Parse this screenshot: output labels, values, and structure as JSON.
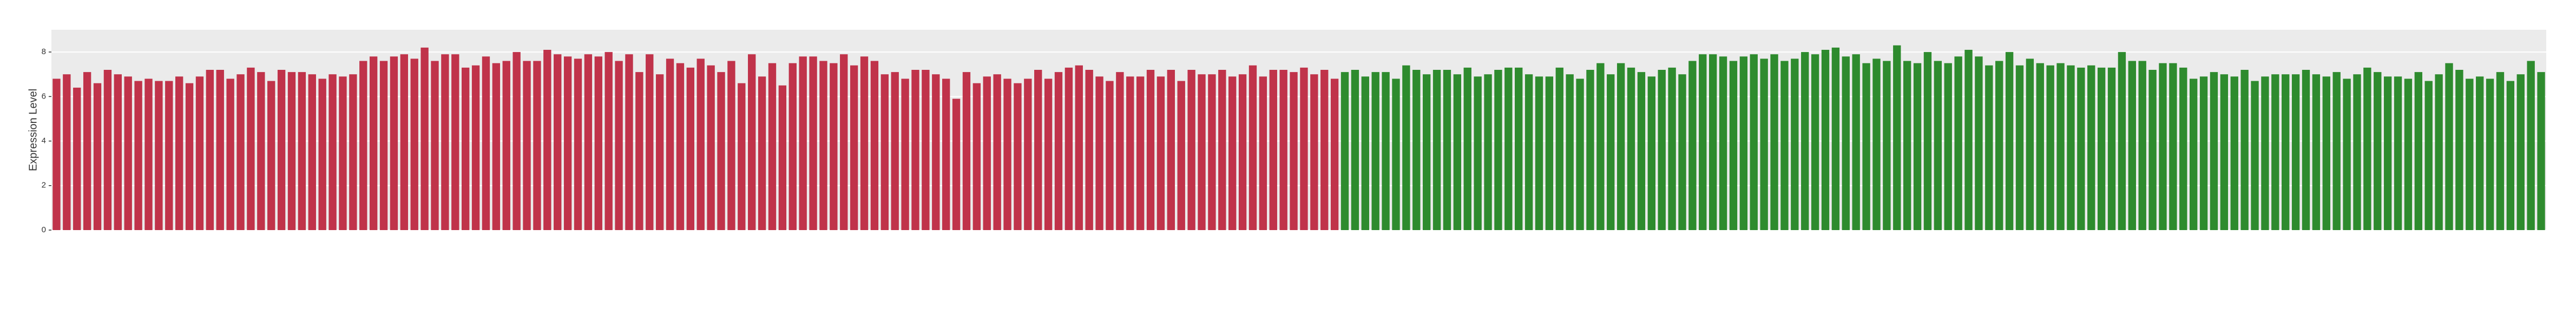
{
  "chart_data": {
    "type": "bar",
    "ylabel": "Expression Level",
    "ylim": [
      0,
      9
    ],
    "yticks": [
      0,
      2,
      4,
      6,
      8
    ],
    "grid": true,
    "series": [
      {
        "color": "#c0334a",
        "values": [
          6.8,
          7.0,
          6.4,
          7.1,
          6.6,
          7.2,
          7.0,
          6.9,
          6.7,
          6.8,
          6.7,
          6.7,
          6.9,
          6.6,
          6.9,
          7.2,
          7.2,
          6.8,
          7.0,
          7.3,
          7.1,
          6.7,
          7.2,
          7.1,
          7.1,
          7.0,
          6.8,
          7.0,
          6.9,
          7.0,
          7.6,
          7.8,
          7.6,
          7.8,
          7.9,
          7.7,
          8.2,
          7.6,
          7.9,
          7.9,
          7.3,
          7.4,
          7.8,
          7.5,
          7.6,
          8.0,
          7.6,
          7.6,
          8.1,
          7.9,
          7.8,
          7.7,
          7.9,
          7.8,
          8.0,
          7.6,
          7.9,
          7.1,
          7.9,
          7.0,
          7.7,
          7.5,
          7.3,
          7.7,
          7.4,
          7.1,
          7.6,
          6.6,
          7.9,
          6.9,
          7.5,
          6.5,
          7.5,
          7.8,
          7.8,
          7.6,
          7.5,
          7.9,
          7.4,
          7.8,
          7.6,
          7.0,
          7.1,
          6.8,
          7.2,
          7.2,
          7.0,
          6.8,
          5.9,
          7.1,
          6.6,
          6.9,
          7.0,
          6.8,
          6.6,
          6.8,
          7.2,
          6.8,
          7.1,
          7.3,
          7.4,
          7.2,
          6.9,
          6.7,
          7.1,
          6.9,
          6.9,
          7.2,
          6.9,
          7.2,
          6.7,
          7.2,
          7.0,
          7.0,
          7.2,
          6.9,
          7.0,
          7.4,
          6.9,
          7.2,
          7.2,
          7.1,
          7.3,
          7.0,
          7.2,
          6.8,
          null,
          null,
          null,
          null,
          null,
          null,
          null,
          null,
          null,
          null,
          null,
          null,
          null,
          null,
          null,
          null,
          null,
          null,
          null,
          null,
          null,
          null,
          null,
          null,
          null,
          null,
          null,
          null,
          null,
          null,
          null,
          null,
          null,
          null,
          null,
          null,
          null,
          null,
          null,
          null,
          null,
          null,
          null,
          null,
          null,
          null,
          null,
          null,
          null,
          null,
          null,
          null,
          null,
          null,
          null,
          null,
          null,
          null,
          null,
          null,
          null,
          null,
          null,
          null,
          null,
          null,
          null,
          null,
          null,
          null,
          null,
          null,
          null,
          null,
          null,
          null,
          null,
          null,
          null,
          null,
          null,
          null,
          null,
          null,
          null,
          null,
          null,
          null,
          null,
          null,
          null,
          null,
          null,
          null,
          null,
          null,
          null,
          null,
          null,
          null,
          null,
          null,
          null,
          null,
          null,
          null,
          null,
          null,
          null,
          null,
          null,
          null,
          null,
          null,
          null,
          null,
          null,
          null
        ]
      },
      {
        "color": "#2e8b2e",
        "values": [
          null,
          null,
          null,
          null,
          null,
          null,
          null,
          null,
          null,
          null,
          null,
          null,
          null,
          null,
          null,
          null,
          null,
          null,
          null,
          null,
          null,
          null,
          null,
          null,
          null,
          null,
          null,
          null,
          null,
          null,
          null,
          null,
          null,
          null,
          null,
          null,
          null,
          null,
          null,
          null,
          null,
          null,
          null,
          null,
          null,
          null,
          null,
          null,
          null,
          null,
          null,
          null,
          null,
          null,
          null,
          null,
          null,
          null,
          null,
          null,
          null,
          null,
          null,
          null,
          null,
          null,
          null,
          null,
          null,
          null,
          null,
          null,
          null,
          null,
          null,
          null,
          null,
          null,
          null,
          null,
          null,
          null,
          null,
          null,
          null,
          null,
          null,
          null,
          null,
          null,
          null,
          null,
          null,
          null,
          null,
          null,
          null,
          null,
          null,
          null,
          null,
          null,
          null,
          null,
          null,
          null,
          null,
          null,
          null,
          null,
          null,
          null,
          null,
          null,
          null,
          null,
          null,
          null,
          null,
          null,
          null,
          null,
          null,
          null,
          null,
          null,
          7.1,
          7.2,
          6.9,
          7.1,
          7.1,
          6.8,
          7.4,
          7.2,
          7.0,
          7.2,
          7.2,
          7.0,
          7.3,
          6.9,
          7.0,
          7.2,
          7.3,
          7.3,
          7.0,
          6.9,
          6.9,
          7.3,
          7.0,
          6.8,
          7.2,
          7.5,
          7.0,
          7.5,
          7.3,
          7.1,
          6.9,
          7.2,
          7.3,
          7.0,
          7.6,
          7.9,
          7.9,
          7.8,
          7.6,
          7.8,
          7.9,
          7.7,
          7.9,
          7.6,
          7.7,
          8.0,
          7.9,
          8.1,
          8.2,
          7.8,
          7.9,
          7.5,
          7.7,
          7.6,
          8.3,
          7.6,
          7.5,
          8.0,
          7.6,
          7.5,
          7.8,
          8.1,
          7.8,
          7.4,
          7.6,
          8.0,
          7.4,
          7.7,
          7.5,
          7.4,
          7.5,
          7.4,
          7.3,
          7.4,
          7.3,
          7.3,
          8.0,
          7.6,
          7.6,
          7.2,
          7.5,
          7.5,
          7.3,
          6.8,
          6.9,
          7.1,
          7.0,
          6.9,
          7.2,
          6.7,
          6.9,
          7.0,
          7.0,
          7.0,
          7.2,
          7.0,
          6.9,
          7.1,
          6.8,
          7.0,
          7.3,
          7.1,
          6.9,
          6.9,
          6.8,
          7.1,
          6.7,
          7.0,
          7.5,
          7.2,
          6.8,
          6.9,
          6.8,
          7.1,
          6.7,
          7.0,
          7.6,
          7.1
        ]
      }
    ]
  }
}
